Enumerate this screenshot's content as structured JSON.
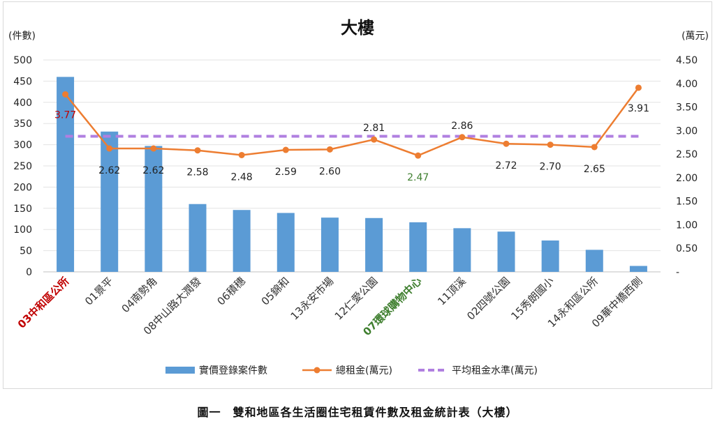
{
  "caption": "圖一　雙和地區各生活圈住宅租賃件數及租金統計表（大樓）",
  "chart_data": {
    "type": "bar",
    "title": "大樓",
    "ylabel": "(件數)",
    "y2label": "(萬元)",
    "ylim": [
      0,
      500
    ],
    "y2lim": [
      0,
      4.5
    ],
    "y_ticks": [
      "0",
      "50",
      "100",
      "150",
      "200",
      "250",
      "300",
      "350",
      "400",
      "450",
      "500"
    ],
    "y2_ticks": [
      "-",
      "0.50",
      "1.00",
      "1.50",
      "2.00",
      "2.50",
      "3.00",
      "3.50",
      "4.00",
      "4.50"
    ],
    "grid": true,
    "legend_position": "bottom",
    "categories": [
      "03中和區公所",
      "01景平",
      "04南勢角",
      "08中山路大潤發",
      "06積穗",
      "05錦和",
      "13永安市場",
      "12仁愛公園",
      "07環球購物中心",
      "11頂溪",
      "02四號公園",
      "15秀朗國小",
      "14永和區公所",
      "09華中橋西側"
    ],
    "category_colors": [
      "#c00000",
      "#333333",
      "#333333",
      "#333333",
      "#333333",
      "#333333",
      "#333333",
      "#333333",
      "#3f7f2f",
      "#333333",
      "#333333",
      "#333333",
      "#333333",
      "#333333"
    ],
    "category_bold": [
      true,
      false,
      false,
      false,
      false,
      false,
      false,
      false,
      true,
      false,
      false,
      false,
      false,
      false
    ],
    "series": [
      {
        "name": "實價登錄案件數",
        "type": "bar",
        "axis": "left",
        "color": "#5b9bd5",
        "values": [
          460,
          331,
          297,
          160,
          146,
          139,
          128,
          127,
          117,
          103,
          95,
          74,
          52,
          14
        ]
      },
      {
        "name": "總租金(萬元)",
        "type": "line",
        "axis": "right",
        "color": "#ed7d31",
        "values": [
          3.77,
          2.62,
          2.62,
          2.58,
          2.48,
          2.59,
          2.6,
          2.81,
          2.47,
          2.86,
          2.72,
          2.7,
          2.65,
          3.91
        ],
        "labels": [
          "3.77",
          "2.62",
          "2.62",
          "2.58",
          "2.48",
          "2.59",
          "2.60",
          "2.81",
          "2.47",
          "2.86",
          "2.72",
          "2.70",
          "2.65",
          "3.91"
        ],
        "label_colors": [
          "#c00000",
          "#222222",
          "#222222",
          "#222222",
          "#222222",
          "#222222",
          "#222222",
          "#222222",
          "#3f7f2f",
          "#222222",
          "#222222",
          "#222222",
          "#222222",
          "#222222"
        ]
      },
      {
        "name": "平均租金水準(萬元)",
        "type": "dashed-line",
        "axis": "right",
        "color": "#b07fe0",
        "values": [
          2.88,
          2.88,
          2.88,
          2.88,
          2.88,
          2.88,
          2.88,
          2.88,
          2.88,
          2.88,
          2.88,
          2.88,
          2.88,
          2.88
        ]
      }
    ]
  }
}
